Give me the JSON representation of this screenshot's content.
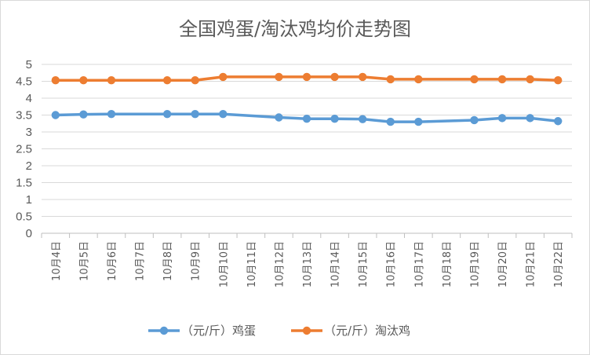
{
  "chart_data": {
    "type": "line",
    "title": "全国鸡蛋/淘汰鸡均价走势图",
    "categories": [
      "10月4日",
      "10月5日",
      "10月6日",
      "10月7日",
      "10月8日",
      "10月9日",
      "10月10日",
      "10月11日",
      "10月12日",
      "10月13日",
      "10月14日",
      "10月15日",
      "10月16日",
      "10月17日",
      "10月18日",
      "10月19日",
      "10月20日",
      "10月21日",
      "10月22日"
    ],
    "series": [
      {
        "name": "（元/斤）鸡蛋",
        "color": "#5b9bd5",
        "values": [
          3.5,
          3.52,
          3.53,
          null,
          3.53,
          3.53,
          3.53,
          null,
          3.43,
          3.39,
          3.39,
          3.38,
          3.3,
          3.3,
          null,
          3.35,
          3.41,
          3.41,
          3.32
        ]
      },
      {
        "name": "（元/斤）淘汰鸡",
        "color": "#ed7d31",
        "values": [
          4.53,
          4.53,
          4.53,
          null,
          4.53,
          4.53,
          4.63,
          null,
          4.63,
          4.63,
          4.63,
          4.63,
          4.56,
          4.56,
          null,
          4.56,
          4.56,
          4.56,
          4.53
        ]
      }
    ],
    "ylim": [
      0,
      5
    ],
    "yticks": [
      "0",
      "0.5",
      "1",
      "1.5",
      "2",
      "2.5",
      "3",
      "3.5",
      "4",
      "4.5",
      "5"
    ],
    "grid": true,
    "legend_position": "bottom"
  }
}
